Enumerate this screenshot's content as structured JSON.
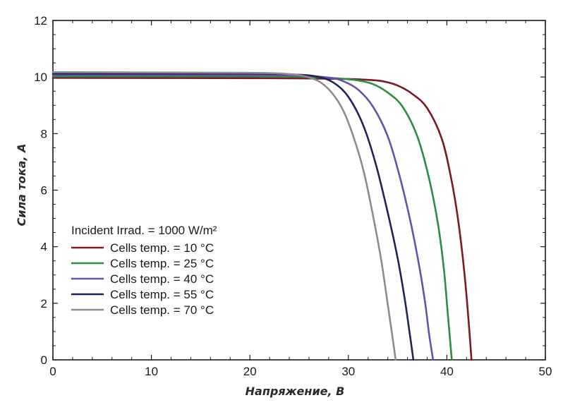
{
  "chart_data": {
    "type": "line",
    "xlabel": "Напряжение, В",
    "ylabel": "Сила тока, А",
    "xlim": [
      0,
      50
    ],
    "ylim": [
      0,
      12
    ],
    "x_ticks": [
      "0",
      "10",
      "20",
      "30",
      "40",
      "50"
    ],
    "y_ticks": [
      "0",
      "2",
      "4",
      "6",
      "8",
      "10",
      "12"
    ],
    "grid": false,
    "legend_position": "lower-left",
    "legend_title": "Incident Irrad. = 1000 W/m²",
    "series": [
      {
        "name": "Cells temp. = 10 °C",
        "color": "#7b1a24",
        "x": [
          0,
          20,
          26,
          30,
          32,
          33.5,
          35,
          36.5,
          38,
          39.5,
          40.5,
          41.2,
          41.8,
          42.2,
          42.5
        ],
        "y": [
          9.97,
          9.96,
          9.95,
          9.93,
          9.9,
          9.85,
          9.7,
          9.4,
          8.9,
          7.8,
          6.3,
          4.8,
          3.0,
          1.4,
          0
        ]
      },
      {
        "name": "Cells temp. = 25 °C",
        "color": "#2e8b43",
        "x": [
          0,
          20,
          26,
          29,
          31,
          32.5,
          34,
          35.5,
          37,
          38.2,
          39.1,
          39.7,
          40.1,
          40.5
        ],
        "y": [
          10.02,
          10.02,
          10.0,
          9.95,
          9.88,
          9.75,
          9.45,
          8.95,
          7.9,
          6.4,
          4.8,
          3.2,
          1.6,
          0
        ]
      },
      {
        "name": "Cells temp. = 40 °C",
        "color": "#6a4fb0",
        "x": [
          0,
          20,
          25,
          28,
          29.5,
          31,
          32.5,
          34,
          35.2,
          36.3,
          37.2,
          37.8,
          38.2,
          38.6
        ],
        "y": [
          10.07,
          10.07,
          10.05,
          9.98,
          9.85,
          9.55,
          8.95,
          7.9,
          6.5,
          4.9,
          3.3,
          2.0,
          0.9,
          0
        ]
      },
      {
        "name": "Cells temp. = 55 °C",
        "color": "#1f2457",
        "x": [
          0,
          20,
          25,
          27,
          28.5,
          30,
          31.5,
          32.8,
          34,
          35,
          35.7,
          36.2,
          36.6
        ],
        "y": [
          10.12,
          10.12,
          10.08,
          10.0,
          9.8,
          9.3,
          8.3,
          6.9,
          5.2,
          3.6,
          2.2,
          1.0,
          0
        ]
      },
      {
        "name": "Cells temp. = 70 °C",
        "color": "#8c8c8c",
        "x": [
          0,
          20,
          24,
          25.5,
          27,
          28.3,
          29.5,
          30.6,
          31.6,
          32.5,
          33.3,
          33.9,
          34.4,
          34.8
        ],
        "y": [
          10.17,
          10.15,
          10.1,
          10.03,
          9.85,
          9.45,
          8.8,
          7.8,
          6.6,
          5.1,
          3.6,
          2.2,
          1.0,
          0
        ]
      }
    ]
  }
}
